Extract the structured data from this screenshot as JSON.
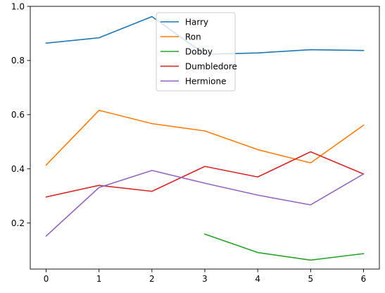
{
  "chart_data": {
    "type": "line",
    "title": "",
    "xlabel": "",
    "ylabel": "",
    "x": [
      0,
      1,
      2,
      3,
      4,
      5,
      6
    ],
    "xlim": [
      -0.3,
      6.3
    ],
    "ylim": [
      0.03,
      1.0
    ],
    "xticks": [
      0,
      1,
      2,
      3,
      4,
      5,
      6
    ],
    "yticks": [
      0.2,
      0.4,
      0.6,
      0.8,
      1.0
    ],
    "ytick_labels": [
      "0.2",
      "0.4",
      "0.6",
      "0.8",
      "1.0"
    ],
    "grid": false,
    "legend_position": "top-center",
    "series": [
      {
        "name": "Harry",
        "color": "#1f77b4",
        "values": [
          0.864,
          0.884,
          0.962,
          0.823,
          0.828,
          0.84,
          0.837
        ]
      },
      {
        "name": "Ron",
        "color": "#ff7f0e",
        "values": [
          0.414,
          0.616,
          0.567,
          0.54,
          0.471,
          0.422,
          0.561
        ]
      },
      {
        "name": "Dobby",
        "color": "#2ca02c",
        "values": [
          null,
          null,
          null,
          0.159,
          0.091,
          0.063,
          0.087
        ]
      },
      {
        "name": "Dumbledore",
        "color": "#d62728",
        "values": [
          0.296,
          0.339,
          0.317,
          0.409,
          0.37,
          0.463,
          0.381
        ]
      },
      {
        "name": "Hermione",
        "color": "#9467bd",
        "values": [
          0.152,
          0.331,
          0.394,
          0.347,
          0.303,
          0.267,
          0.381
        ]
      }
    ]
  }
}
